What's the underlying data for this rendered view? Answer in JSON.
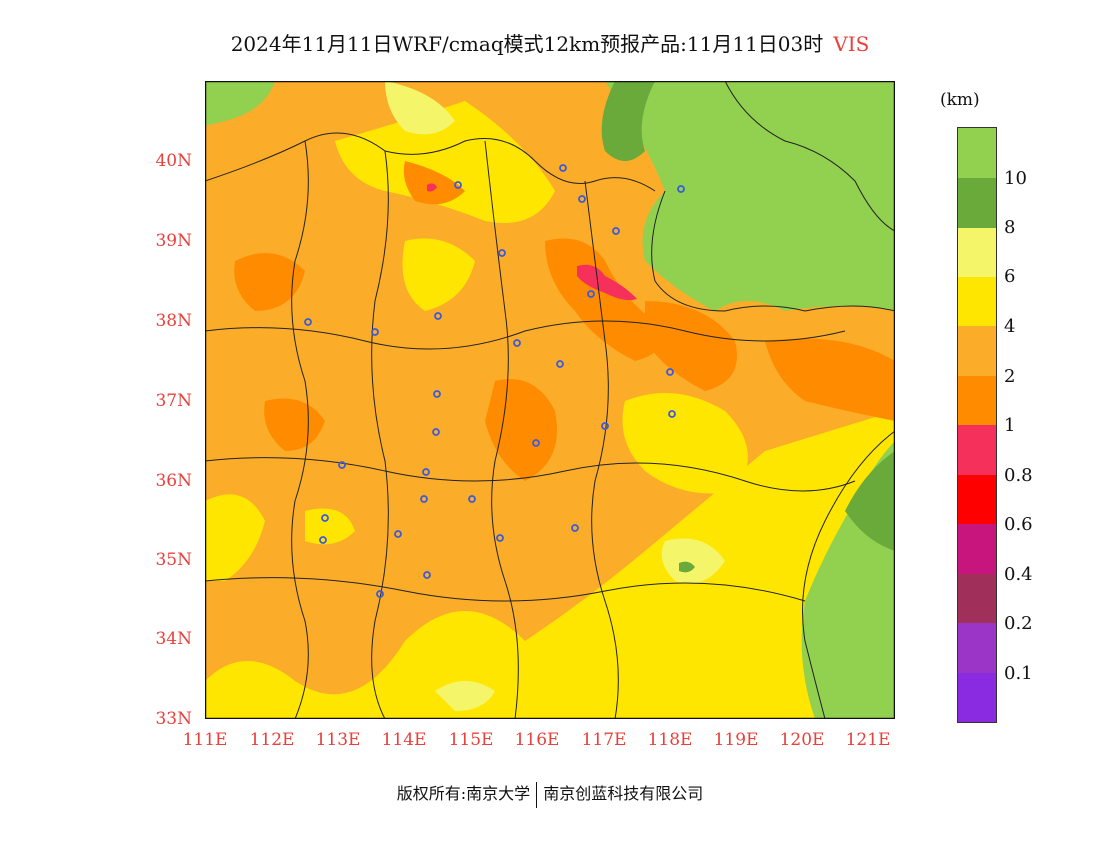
{
  "title": {
    "text": "2024年11月11日WRF/cmaq模式12km预报产品:11月11日03时",
    "variable": "VIS"
  },
  "axes": {
    "lat_labels": [
      "40N",
      "39N",
      "38N",
      "37N",
      "36N",
      "35N",
      "34N",
      "33N"
    ],
    "lon_labels": [
      "111E",
      "112E",
      "113E",
      "114E",
      "115E",
      "116E",
      "117E",
      "118E",
      "119E",
      "120E",
      "121E"
    ],
    "lat_range": [
      33,
      41
    ],
    "lon_range": [
      111,
      121.4
    ]
  },
  "colorbar": {
    "unit": "(km)",
    "levels": [
      "10",
      "8",
      "6",
      "4",
      "2",
      "1",
      "0.8",
      "0.6",
      "0.4",
      "0.2",
      "0.1"
    ],
    "colors": [
      "#92d050",
      "#6aaa3a",
      "#f5f56a",
      "#ffe600",
      "#fbad2a",
      "#ff8c00",
      "#f5305a",
      "#ff0000",
      "#c8157d",
      "#a0305a",
      "#9a35c8",
      "#8a2be2"
    ]
  },
  "map": {
    "colors": {
      "vis_gt10": "#92d050",
      "vis_8_10": "#6aaa3a",
      "vis_6_8": "#f5f56a",
      "vis_4_6": "#ffe600",
      "vis_2_4": "#fbad2a",
      "vis_1_2": "#ff8c00",
      "vis_08_1": "#f5305a",
      "station": "#3b5bdb",
      "border": "#222222"
    }
  },
  "footer": {
    "left": "版权所有:南京大学",
    "right": "南京创蓝科技有限公司"
  }
}
